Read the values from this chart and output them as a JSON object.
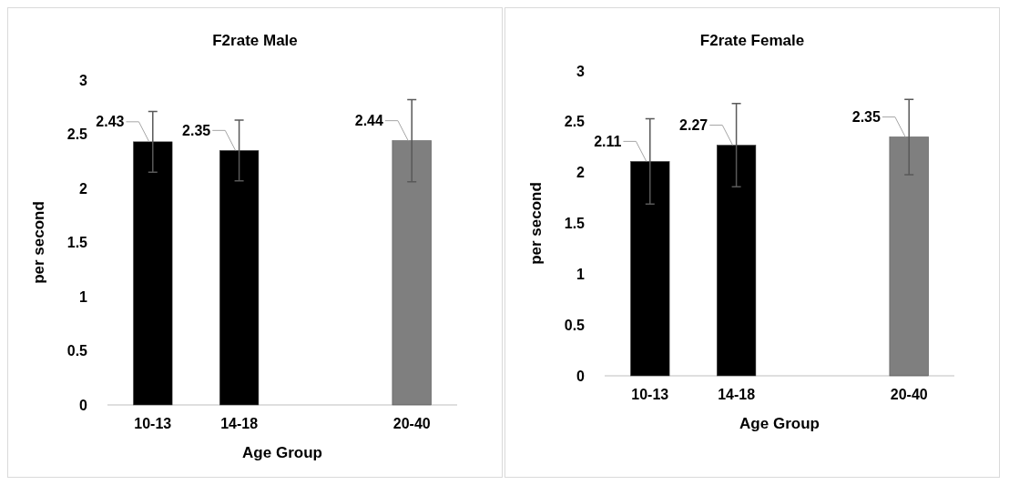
{
  "chart_data": [
    {
      "type": "bar",
      "title": "F2rate Male",
      "xlabel": "Age Group",
      "ylabel": "per second",
      "categories": [
        "10-13",
        "14-18",
        null,
        "20-40"
      ],
      "values": [
        2.43,
        2.35,
        null,
        2.44
      ],
      "colors": [
        "#000000",
        "#000000",
        null,
        "#7f7f7f"
      ],
      "errors": [
        0.28,
        0.28,
        null,
        0.38
      ],
      "ylim": [
        0,
        3
      ],
      "yticks": [
        0,
        0.5,
        1,
        1.5,
        2,
        2.5,
        3
      ],
      "data_labels": true,
      "grid": false
    },
    {
      "type": "bar",
      "title": "F2rate Female",
      "xlabel": "Age Group",
      "ylabel": "per second",
      "categories": [
        "10-13",
        "14-18",
        null,
        "20-40"
      ],
      "values": [
        2.11,
        2.27,
        null,
        2.35
      ],
      "colors": [
        "#000000",
        "#000000",
        null,
        "#7f7f7f"
      ],
      "errors": [
        0.42,
        0.41,
        null,
        0.37
      ],
      "ylim": [
        0,
        3
      ],
      "yticks": [
        0,
        0.5,
        1,
        1.5,
        2,
        2.5,
        3
      ],
      "data_labels": true,
      "grid": false
    }
  ]
}
